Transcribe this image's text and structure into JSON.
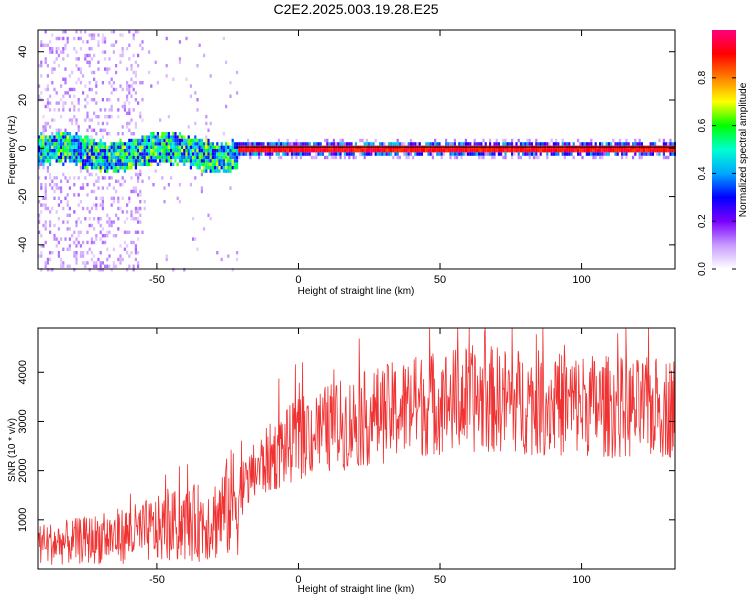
{
  "figure": {
    "title": "C2E2.2025.003.19.28.E25"
  },
  "colors": {
    "snr_line": "#f03232",
    "center_line": "#000000",
    "accent_red": "#ff2020"
  },
  "chart_data": [
    {
      "type": "heatmap",
      "title": "C2E2.2025.003.19.28.E25",
      "xlabel": "Height of straight line (km)",
      "ylabel": "Frequency (Hz)",
      "xlim": [
        -92,
        133
      ],
      "ylim": [
        -50,
        49
      ],
      "xticks": [
        -50,
        0,
        50,
        100
      ],
      "yticks": [
        -40,
        -20,
        0,
        20,
        40
      ],
      "colorbar": {
        "label": "Normalized spectral amplitude",
        "range": [
          0,
          1
        ],
        "ticks": [
          0.0,
          0.2,
          0.4,
          0.6,
          0.8
        ],
        "colormap": [
          "#ffffff",
          "#c89bff",
          "#7a00ff",
          "#0000ff",
          "#00a8ff",
          "#00ffd0",
          "#00ff00",
          "#ffff00",
          "#ff8000",
          "#ff0000",
          "#ff0080"
        ]
      },
      "description_values": {
        "noise_band_x": [
          -92,
          -42
        ],
        "noise_band_halfwidth_hz": 5,
        "tone_frequency_hz": 0.5,
        "tone_onset_km": -22
      },
      "grid": false
    },
    {
      "type": "line",
      "xlabel": "Height of straight line (km)",
      "ylabel": "SNR (10 * v/v)",
      "xlim": [
        -92,
        133
      ],
      "ylim": [
        0,
        4900
      ],
      "xticks": [
        -50,
        0,
        50,
        100
      ],
      "yticks": [
        1000,
        2000,
        3000,
        4000
      ],
      "series": [
        {
          "envelope_x": [
            -92,
            -80,
            -70,
            -60,
            -50,
            -40,
            -30,
            -25,
            -20,
            -15,
            -10,
            -5,
            0,
            10,
            20,
            30,
            40,
            50,
            60,
            70,
            80,
            90,
            100,
            110,
            120,
            133
          ],
          "envelope_y": [
            500,
            550,
            620,
            700,
            800,
            900,
            1000,
            1250,
            1600,
            2000,
            2250,
            2450,
            2650,
            2850,
            3000,
            3150,
            3300,
            3400,
            3450,
            3450,
            3400,
            3350,
            3350,
            3300,
            3250,
            3300
          ]
        }
      ],
      "grid": false
    }
  ]
}
